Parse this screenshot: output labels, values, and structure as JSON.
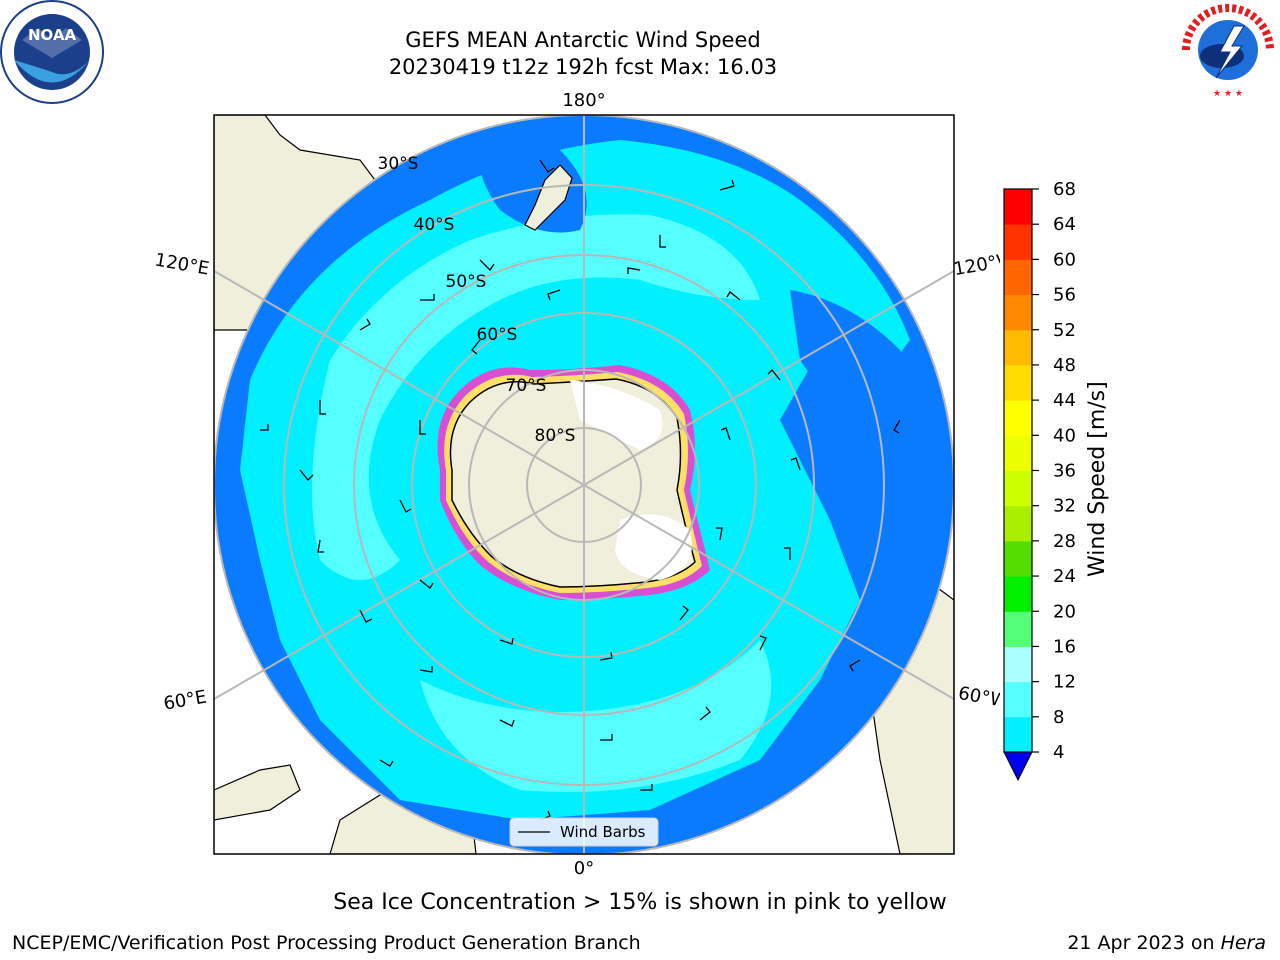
{
  "title_line1": "GEFS MEAN Antarctic Wind Speed",
  "title_line2": "20230419 t12z 192h fcst   Max: 16.03",
  "caption": "Sea Ice Concentration > 15% is shown in pink to yellow",
  "footer_left": "NCEP/EMC/Verification Post Processing Product Generation Branch",
  "footer_date": "21 Apr 2023 on ",
  "footer_host": "Hera",
  "legend_label": "Wind Barbs",
  "longitude_labels": {
    "top": "180°",
    "bottom": "0°",
    "upper_left": "120°E",
    "upper_right": "120°W",
    "lower_left": "60°E",
    "lower_right": "60°W"
  },
  "latitude_labels": [
    "30°S",
    "40°S",
    "50°S",
    "60°S",
    "70°S",
    "80°S"
  ],
  "logos": {
    "noaa": "NOAA",
    "nws": "NATIONAL WEATHER SERVICE"
  },
  "colorbar": {
    "label": "Wind Speed [m/s]",
    "ticks": [
      "4",
      "8",
      "12",
      "16",
      "20",
      "24",
      "28",
      "32",
      "36",
      "40",
      "44",
      "48",
      "52",
      "56",
      "60",
      "64",
      "68"
    ],
    "colors": [
      "#0055ff",
      "#00f0ff",
      "#55ffff",
      "#aaffff",
      "#55ff77",
      "#00ee00",
      "#55dd00",
      "#aaee00",
      "#ccff00",
      "#eeff00",
      "#ffff00",
      "#ffdd00",
      "#ffbb00",
      "#ff8800",
      "#ff6600",
      "#ff3300",
      "#ff0000"
    ],
    "extend_color": "#0000ee"
  },
  "map_colors": {
    "land": "#efefdc",
    "ocean_low": "#0a7bff",
    "ocean_mid": "#00ffff",
    "ocean_high": "#55ffff",
    "ice_edge": "#ff33cc",
    "ice_mid": "#ffe066",
    "grid": "#b8b8b8"
  }
}
